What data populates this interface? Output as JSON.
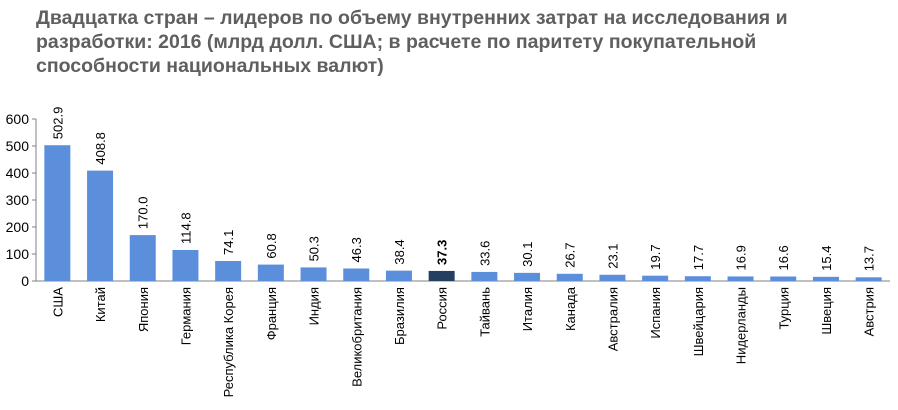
{
  "title": "Двадцатка стран – лидеров по объему внутренних затрат на исследования и разработки: 2016  (млрд долл. США; в расчете по паритету покупательной способности национальных валют)",
  "colors": {
    "bar": "#5b8fdc",
    "highlight": "#243f60"
  },
  "chart_data": {
    "type": "bar",
    "title": "Двадцатка стран – лидеров по объему внутренних затрат на исследования и разработки: 2016  (млрд долл. США; в расчете по паритету покупательной способности национальных валют)",
    "xlabel": "",
    "ylabel": "",
    "ylim": [
      0,
      600
    ],
    "yticks": [
      0,
      100,
      200,
      300,
      400,
      500,
      600
    ],
    "grid": false,
    "legend": "none",
    "highlight_category": "Россия",
    "categories": [
      "США",
      "Китай",
      "Япония",
      "Германия",
      "Республика Корея",
      "Франция",
      "Индия",
      "Великобритания",
      "Бразилия",
      "Россия",
      "Тайвань",
      "Италия",
      "Канада",
      "Австралия",
      "Испания",
      "Швейцария",
      "Нидерланды",
      "Турция",
      "Швеция",
      "Австрия"
    ],
    "values": [
      502.9,
      408.8,
      170.0,
      114.8,
      74.1,
      60.8,
      50.3,
      46.3,
      38.4,
      37.3,
      33.6,
      30.1,
      26.7,
      23.1,
      19.7,
      17.7,
      16.9,
      16.6,
      15.4,
      13.7
    ],
    "value_labels": [
      "502.9",
      "408.8",
      "170.0",
      "114.8",
      "74.1",
      "60.8",
      "50.3",
      "46.3",
      "38.4",
      "37.3",
      "33.6",
      "30.1",
      "26.7",
      "23.1",
      "19.7",
      "17.7",
      "16.9",
      "16.6",
      "15.4",
      "13.7"
    ]
  }
}
